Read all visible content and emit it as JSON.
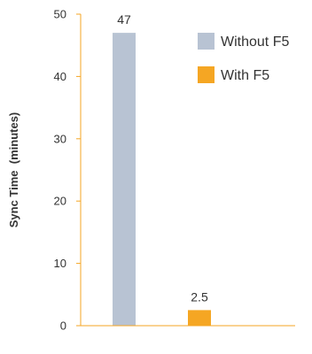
{
  "chart_data": {
    "type": "bar",
    "categories": [
      "Without F5",
      "With F5"
    ],
    "values": [
      47,
      2.5
    ],
    "value_labels": [
      "47",
      "2.5"
    ],
    "colors": [
      "#b8c3d3",
      "#f5a623"
    ],
    "ylabel": "Sync Time  (minutes)",
    "xlabel": "",
    "ylim": [
      0,
      50
    ],
    "yticks": [
      0,
      10,
      20,
      30,
      40,
      50
    ],
    "grid": false,
    "legend": {
      "position": "top-right",
      "entries": [
        {
          "label": "Without F5",
          "color": "#b8c3d3"
        },
        {
          "label": "With F5",
          "color": "#f5a623"
        }
      ]
    },
    "axis_color": "#f5a623"
  }
}
